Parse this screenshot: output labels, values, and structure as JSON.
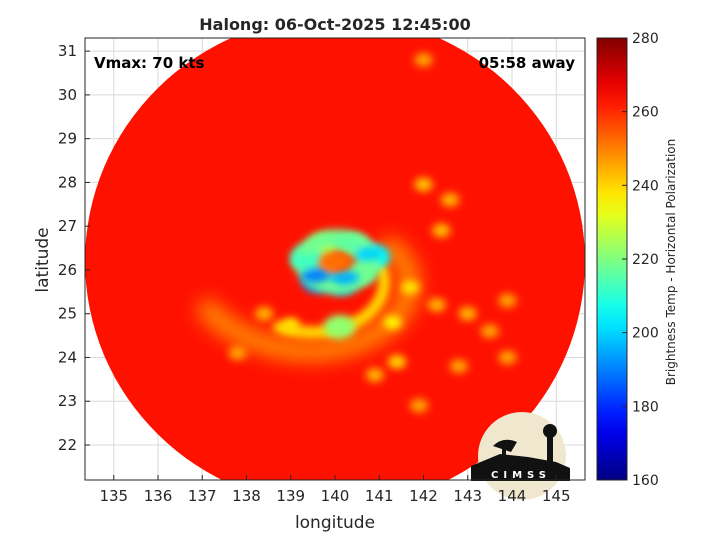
{
  "chart_data": {
    "type": "heatmap",
    "title": "Halong: 06-Oct-2025 12:45:00",
    "xlabel": "longitude",
    "ylabel": "latitude",
    "xlim": [
      134.35,
      145.65
    ],
    "ylim": [
      21.2,
      31.3
    ],
    "xticks": [
      135,
      136,
      137,
      138,
      139,
      140,
      141,
      142,
      143,
      144,
      145
    ],
    "yticks": [
      22,
      23,
      24,
      25,
      26,
      27,
      28,
      29,
      30,
      31
    ],
    "grid": true,
    "colorbar": {
      "label": "Brightness Temp - Horizontal Polarization",
      "range": [
        160,
        280
      ],
      "ticks": [
        160,
        180,
        200,
        220,
        240,
        260,
        280
      ],
      "colormap": "jet"
    },
    "annotations": {
      "vmax": "Vmax: 70 kts",
      "time_away": "05:58 away"
    },
    "swath": {
      "center_lon": 140.0,
      "center_lat": 26.2,
      "background_value": 263
    },
    "storm_center": {
      "lon": 140.0,
      "lat": 26.1
    },
    "features": [
      {
        "lon": 139.85,
        "lat": 26.1,
        "value": 248
      },
      {
        "lon": 139.75,
        "lat": 26.55,
        "value": 226
      },
      {
        "lon": 140.45,
        "lat": 26.55,
        "value": 218
      },
      {
        "lon": 140.9,
        "lat": 26.3,
        "value": 205
      },
      {
        "lon": 139.35,
        "lat": 26.3,
        "value": 212
      },
      {
        "lon": 139.6,
        "lat": 25.75,
        "value": 193
      },
      {
        "lon": 140.15,
        "lat": 25.7,
        "value": 198
      },
      {
        "lon": 140.6,
        "lat": 25.95,
        "value": 218
      },
      {
        "lon": 140.1,
        "lat": 24.7,
        "value": 222
      },
      {
        "lon": 139.0,
        "lat": 24.75,
        "value": 238
      },
      {
        "lon": 141.3,
        "lat": 24.8,
        "value": 236
      },
      {
        "lon": 141.7,
        "lat": 25.6,
        "value": 238
      },
      {
        "lon": 141.4,
        "lat": 23.9,
        "value": 240
      },
      {
        "lon": 140.9,
        "lat": 23.6,
        "value": 244
      },
      {
        "lon": 142.0,
        "lat": 27.95,
        "value": 242
      },
      {
        "lon": 142.6,
        "lat": 27.6,
        "value": 244
      },
      {
        "lon": 142.4,
        "lat": 26.9,
        "value": 243
      },
      {
        "lon": 143.0,
        "lat": 25.0,
        "value": 244
      },
      {
        "lon": 143.5,
        "lat": 24.6,
        "value": 246
      },
      {
        "lon": 143.9,
        "lat": 24.0,
        "value": 246
      },
      {
        "lon": 142.8,
        "lat": 23.8,
        "value": 246
      },
      {
        "lon": 142.3,
        "lat": 25.2,
        "value": 244
      },
      {
        "lon": 137.8,
        "lat": 24.1,
        "value": 246
      },
      {
        "lon": 138.4,
        "lat": 25.0,
        "value": 244
      },
      {
        "lon": 141.9,
        "lat": 22.9,
        "value": 246
      },
      {
        "lon": 143.9,
        "lat": 25.3,
        "value": 246
      },
      {
        "lon": 142.0,
        "lat": 30.8,
        "value": 246
      }
    ]
  },
  "logo": {
    "text": "CIMSS"
  }
}
